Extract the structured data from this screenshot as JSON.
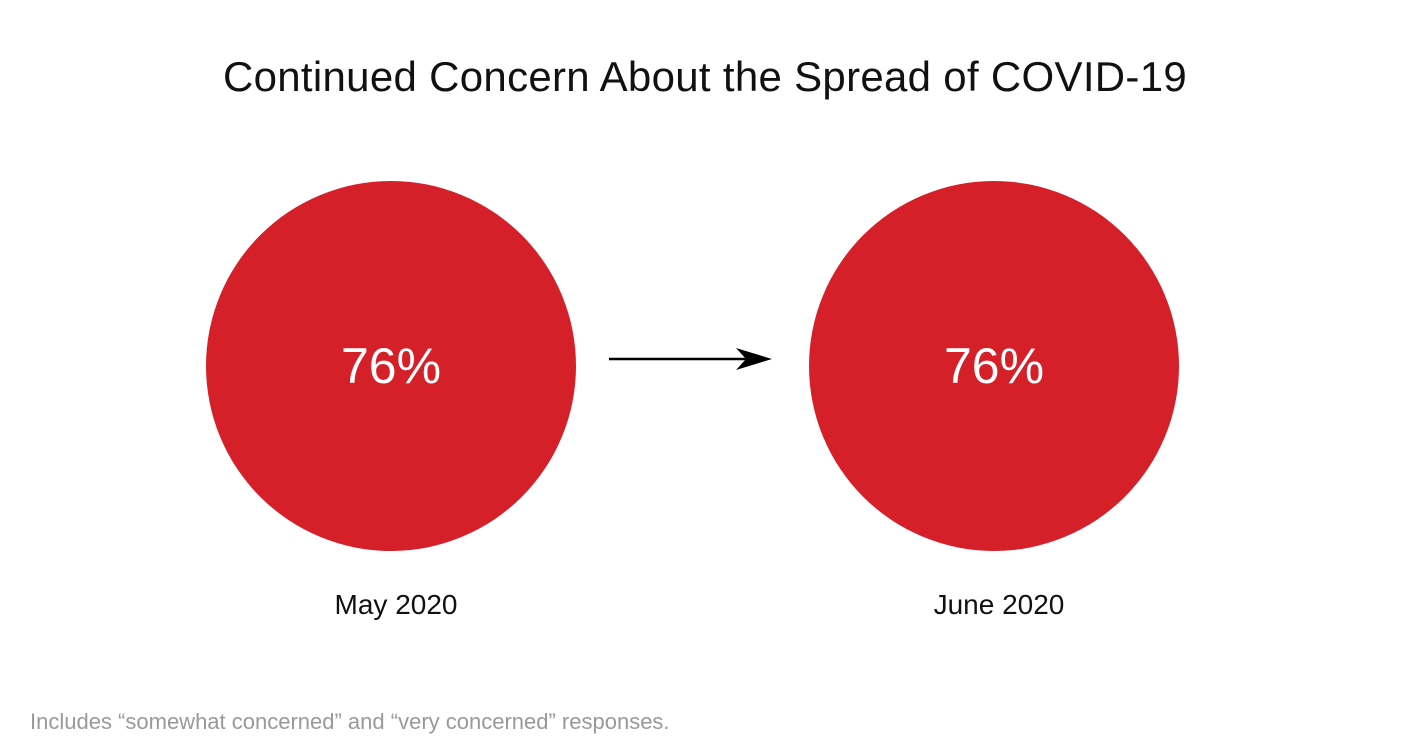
{
  "title": "Continued Concern About the Spread of COVID-19",
  "footnote": "Includes “somewhat concerned” and “very concerned” responses.",
  "colors": {
    "circle_fill": "#d52029",
    "value_text": "#ffffff",
    "label_text": "#111111",
    "arrow": "#000000",
    "footnote": "#999999"
  },
  "chart_data": {
    "type": "bubble-comparison",
    "title": "Continued Concern About the Spread of COVID-19",
    "categories": [
      "May 2020",
      "June 2020"
    ],
    "values": [
      76,
      76
    ],
    "value_labels": [
      "76%",
      "76%"
    ],
    "unit": "%",
    "connector": "arrow"
  }
}
